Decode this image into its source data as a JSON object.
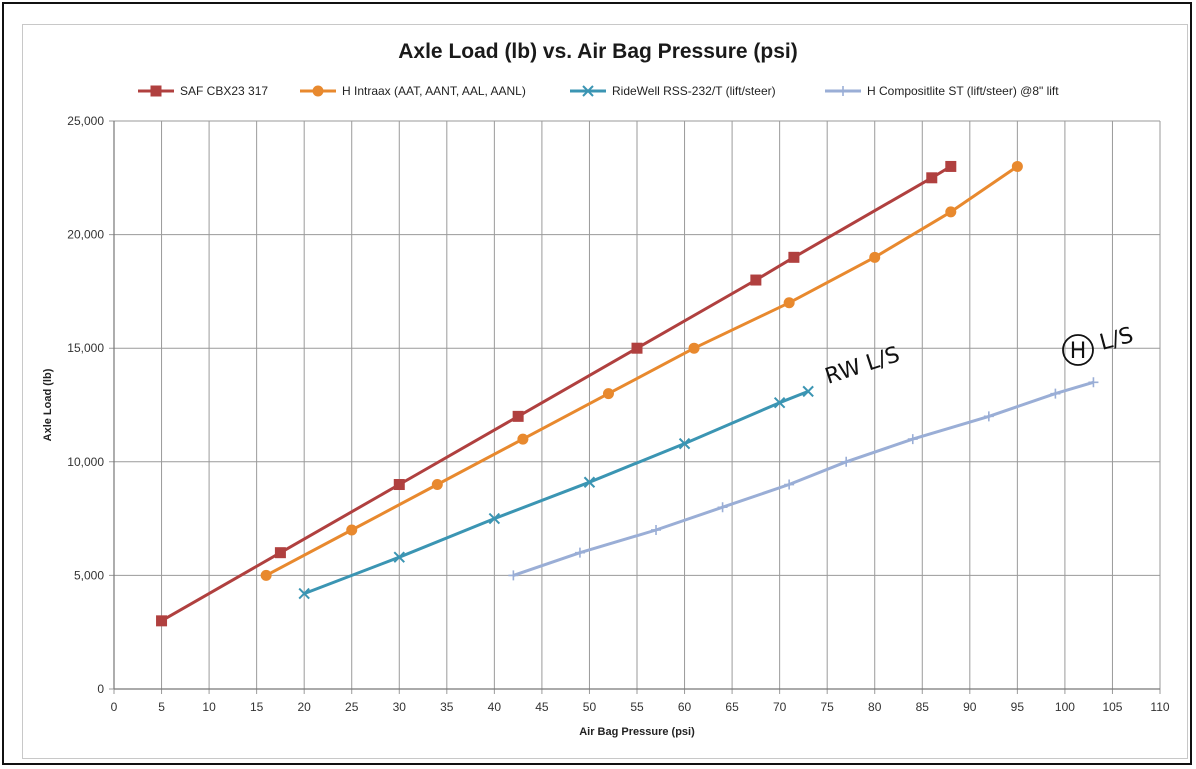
{
  "chart_data": {
    "type": "line",
    "title": "Axle Load (lb) vs. Air Bag Pressure (psi)",
    "xlabel": "Air Bag Pressure (psi)",
    "ylabel": "Axle Load (lb)",
    "xlim": [
      0,
      110
    ],
    "ylim": [
      0,
      25000
    ],
    "x_ticks": [
      "0",
      "5",
      "10",
      "15",
      "20",
      "25",
      "30",
      "35",
      "40",
      "45",
      "50",
      "55",
      "60",
      "65",
      "70",
      "75",
      "80",
      "85",
      "90",
      "95",
      "100",
      "105",
      "110"
    ],
    "y_ticks": [
      "0",
      "5,000",
      "10,000",
      "15,000",
      "20,000",
      "25,000"
    ],
    "grid": true,
    "legend_position": "top",
    "series": [
      {
        "name": "SAF CBX23 317",
        "color": "#b0403f",
        "marker": "square",
        "points": [
          [
            5,
            3000
          ],
          [
            17.5,
            6000
          ],
          [
            30,
            9000
          ],
          [
            42.5,
            12000
          ],
          [
            55,
            15000
          ],
          [
            67.5,
            18000
          ],
          [
            71.5,
            19000
          ],
          [
            86,
            22500
          ],
          [
            88,
            23000
          ]
        ]
      },
      {
        "name": "H Intraax (AAT, AANT, AAL, AANL)",
        "color": "#e8892e",
        "marker": "circle",
        "points": [
          [
            16,
            5000
          ],
          [
            25,
            7000
          ],
          [
            34,
            9000
          ],
          [
            43,
            11000
          ],
          [
            52,
            13000
          ],
          [
            61,
            15000
          ],
          [
            71,
            17000
          ],
          [
            80,
            19000
          ],
          [
            88,
            21000
          ],
          [
            95,
            23000
          ]
        ]
      },
      {
        "name": "RideWell RSS-232/T (lift/steer)",
        "color": "#3b95b3",
        "marker": "x",
        "points": [
          [
            20,
            4200
          ],
          [
            30,
            5800
          ],
          [
            40,
            7500
          ],
          [
            50,
            9100
          ],
          [
            60,
            10800
          ],
          [
            70,
            12600
          ],
          [
            73,
            13100
          ]
        ]
      },
      {
        "name": "H Compositlite ST (lift/steer) @8\" lift",
        "color": "#9aaed6",
        "marker": "plus",
        "points": [
          [
            42,
            5000
          ],
          [
            49,
            6000
          ],
          [
            57,
            7000
          ],
          [
            64,
            8000
          ],
          [
            71,
            9000
          ],
          [
            77,
            10000
          ],
          [
            84,
            11000
          ],
          [
            92,
            12000
          ],
          [
            99,
            13000
          ],
          [
            103,
            13500
          ]
        ]
      }
    ],
    "annotations": [
      {
        "text": "RW L/S",
        "near_series": "RideWell RSS-232/T (lift/steer)"
      },
      {
        "text": "L/S",
        "circled_letter": "H",
        "near_series": "H Compositlite ST (lift/steer) @8\" lift"
      }
    ]
  }
}
